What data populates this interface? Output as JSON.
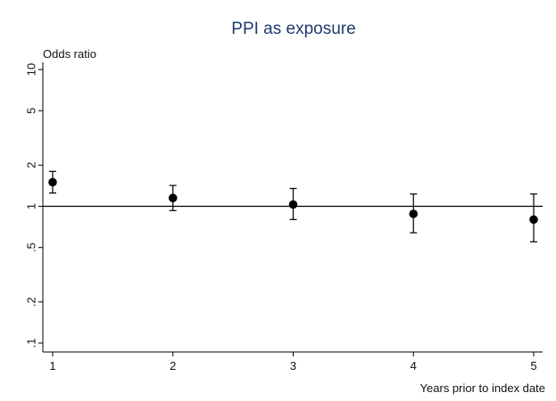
{
  "chart_data": {
    "type": "scatter",
    "title": "PPI as exposure",
    "xlabel": "Years prior to index date",
    "ylabel": "Odds ratio",
    "y_scale": "log",
    "xlim": [
      1,
      5
    ],
    "ylim": [
      0.1,
      10
    ],
    "x_ticks": [
      1,
      2,
      3,
      4,
      5
    ],
    "x_tick_labels": [
      "1",
      "2",
      "3",
      "4",
      "5"
    ],
    "y_ticks": [
      0.1,
      0.2,
      0.5,
      1,
      2,
      5,
      10
    ],
    "y_tick_labels": [
      ".1",
      ".2",
      ".5",
      "1",
      "2",
      "5",
      "10"
    ],
    "reference_line": 1,
    "grid": false,
    "points": [
      {
        "x": 1,
        "y": 1.5,
        "lower": 1.25,
        "upper": 1.8
      },
      {
        "x": 2,
        "y": 1.15,
        "lower": 0.93,
        "upper": 1.42
      },
      {
        "x": 3,
        "y": 1.03,
        "lower": 0.8,
        "upper": 1.35
      },
      {
        "x": 4,
        "y": 0.88,
        "lower": 0.64,
        "upper": 1.23
      },
      {
        "x": 5,
        "y": 0.8,
        "lower": 0.55,
        "upper": 1.23
      }
    ],
    "colors": {
      "title": "#1f3a6e",
      "marker": "#000000",
      "axis": "#000000"
    }
  }
}
